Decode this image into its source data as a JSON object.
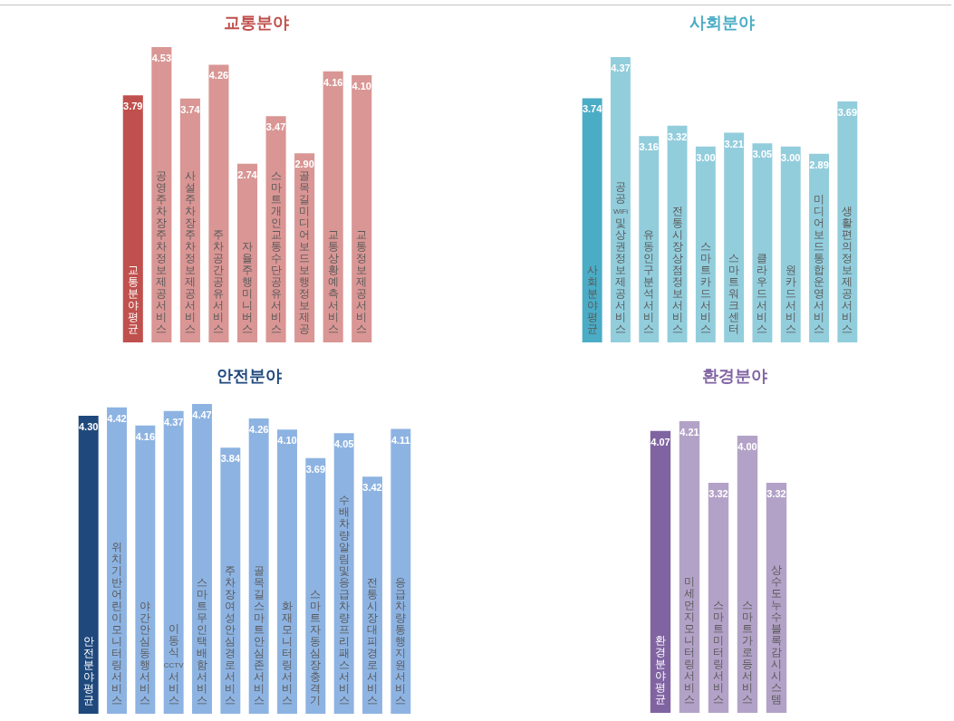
{
  "chart_data": [
    {
      "type": "bar",
      "title": "교통분야",
      "categories": [
        "교통분야평균",
        "공영주차장주차정보제공서비스",
        "사설주차장주차정보제공서비스",
        "주차공간공유서비스",
        "자율주행미니버스",
        "스마트개인교통수단공유서비스",
        "골목길미디어보드보행정보제공",
        "교통상황예측서비스",
        "교통정보제공서비스"
      ],
      "values": [
        3.79,
        4.53,
        3.74,
        4.26,
        2.74,
        3.47,
        2.9,
        4.16,
        4.1
      ],
      "value_labels": [
        "3.79",
        "4.53",
        "3.74",
        "4.26",
        "2.74",
        "3.47",
        "2.90",
        "4.16",
        "4.10"
      ],
      "colors": [
        "#c0504d",
        "#d99694",
        "#d99694",
        "#d99694",
        "#d99694",
        "#d99694",
        "#d99694",
        "#d99694",
        "#d99694"
      ],
      "tick_labels": "x"
    },
    {
      "type": "bar",
      "title": "사회분야",
      "categories": [
        "사회분야평균",
        "공공WiFi및상권정보제공서비스",
        "유동인구분석서비스",
        "전통시장상점정보서비스",
        "스마트카드서비스",
        "스마트워크센터",
        "클라우드서비스",
        "원카드서비스",
        "미디어보드통합운영서비스",
        "생활편의정보제공서비스"
      ],
      "values": [
        3.74,
        4.37,
        3.16,
        3.32,
        3.0,
        3.21,
        3.05,
        3.0,
        2.89,
        3.69
      ],
      "value_labels": [
        "3.74",
        "4.37",
        "3.16",
        "3.32",
        "3.00",
        "3.21",
        "3.05",
        "3.00",
        "2.89",
        "3.69"
      ],
      "colors": [
        "#4bacc6",
        "#92cddc",
        "#92cddc",
        "#92cddc",
        "#92cddc",
        "#92cddc",
        "#92cddc",
        "#92cddc",
        "#92cddc",
        "#92cddc"
      ],
      "tick_labels": "x"
    },
    {
      "type": "bar",
      "title": "안전분야",
      "categories": [
        "안전분야평균",
        "위치기반어린이모니터링서비스",
        "야간안심동행서비스",
        "이동식CCTV서비스",
        "스마트무인택배함서비스",
        "주차장여성안심경로서비스",
        "골목길스마트안심존서비스",
        "화재모니터링서비스",
        "스마트자동심장충격기",
        "수배차량알림및응급차량프리패스서비스",
        "전통시장대피경로서비스",
        "응급차량통행지원서비스"
      ],
      "values": [
        4.3,
        4.42,
        4.16,
        4.37,
        4.47,
        3.84,
        4.26,
        4.1,
        3.69,
        4.05,
        3.42,
        4.11
      ],
      "value_labels": [
        "4.30",
        "4.42",
        "4.16",
        "4.37",
        "4.47",
        "3.84",
        "4.26",
        "4.10",
        "3.69",
        "4.05",
        "3.42",
        "4.11"
      ],
      "colors": [
        "#1f497d",
        "#8db3e2",
        "#8db3e2",
        "#8db3e2",
        "#8db3e2",
        "#8db3e2",
        "#8db3e2",
        "#8db3e2",
        "#8db3e2",
        "#8db3e2",
        "#8db3e2",
        "#8db3e2"
      ],
      "tick_labels": "x"
    },
    {
      "type": "bar",
      "title": "환경분야",
      "categories": [
        "환경분야평균",
        "미세먼지모니터링서비스",
        "스마트미터링서비스",
        "스마트가로등서비스",
        "상수도누수블록감시시스템"
      ],
      "values": [
        4.07,
        4.21,
        3.32,
        4.0,
        3.32
      ],
      "value_labels": [
        "4.07",
        "4.21",
        "3.32",
        "4.00",
        "3.32"
      ],
      "colors": [
        "#8064a2",
        "#b3a2c7",
        "#b3a2c7",
        "#b3a2c7",
        "#b3a2c7"
      ],
      "tick_labels": "x"
    }
  ]
}
